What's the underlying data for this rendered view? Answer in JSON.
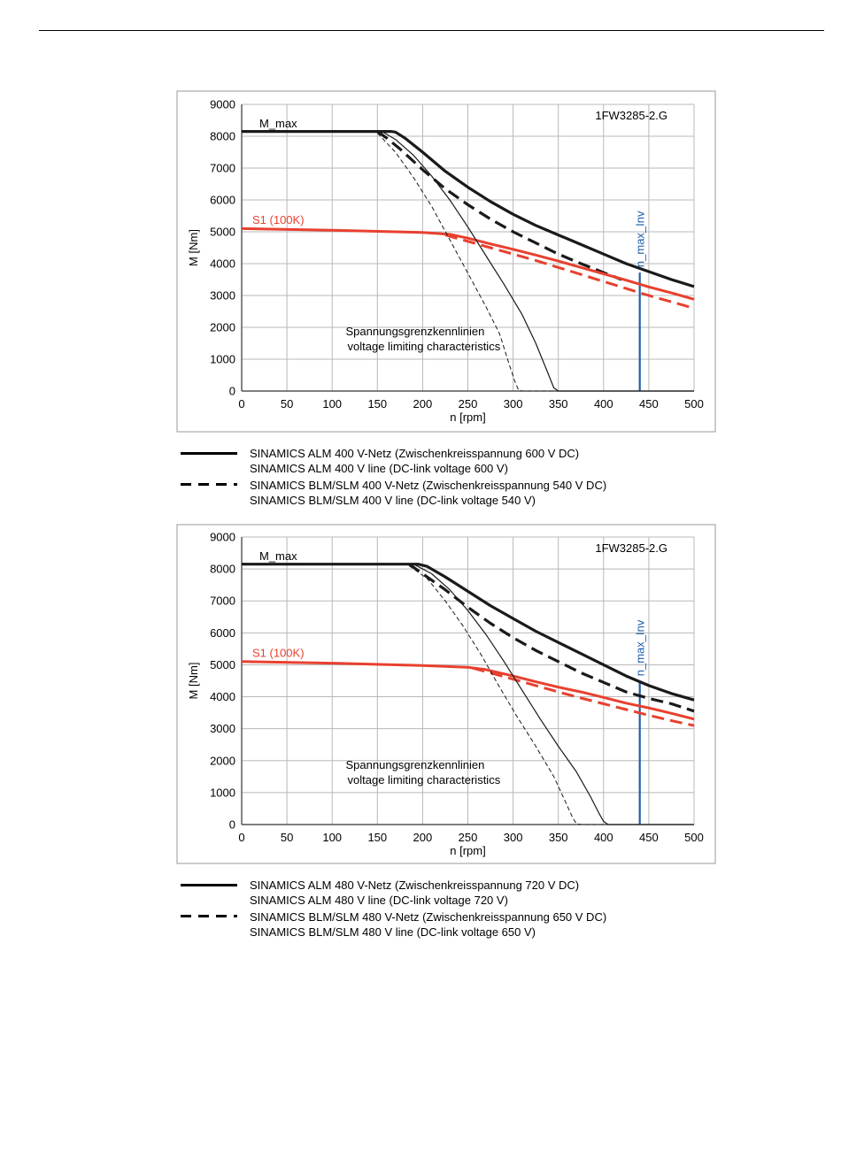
{
  "chart_data": [
    {
      "type": "line",
      "title": "1FW3285-2.G",
      "xlabel": "n [rpm]",
      "ylabel": "M [Nm]",
      "xlim": [
        0,
        500
      ],
      "ylim": [
        0,
        9000
      ],
      "xticks": [
        "0",
        "50",
        "100",
        "150",
        "200",
        "250",
        "300",
        "350",
        "400",
        "450",
        "500"
      ],
      "yticks": [
        "0",
        "1000",
        "2000",
        "3000",
        "4000",
        "5000",
        "6000",
        "7000",
        "8000",
        "9000"
      ],
      "grid": true,
      "annotations": {
        "mmax": "M_max",
        "s1": "S1 (100K)",
        "nmax": "n_max_Inv",
        "vlim1": "Spannungsgrenzkennlinien",
        "vlim2": "voltage limiting characteristics"
      },
      "n_max_inv": 440,
      "series": [
        {
          "key": "mmax_alm",
          "color": "#1a1a1a",
          "style": "solid",
          "width": 3.2,
          "points": [
            [
              0,
              8150
            ],
            [
              165,
              8150
            ],
            [
              170,
              8130
            ],
            [
              180,
              7950
            ],
            [
              200,
              7500
            ],
            [
              225,
              6900
            ],
            [
              250,
              6400
            ],
            [
              275,
              5950
            ],
            [
              300,
              5550
            ],
            [
              325,
              5200
            ],
            [
              350,
              4900
            ],
            [
              375,
              4600
            ],
            [
              400,
              4300
            ],
            [
              425,
              4000
            ],
            [
              450,
              3750
            ],
            [
              475,
              3500
            ],
            [
              500,
              3280
            ]
          ]
        },
        {
          "key": "mmax_blm",
          "color": "#1a1a1a",
          "style": "dashed",
          "width": 3.2,
          "points": [
            [
              150,
              8150
            ],
            [
              160,
              7950
            ],
            [
              175,
              7600
            ],
            [
              200,
              6950
            ],
            [
              225,
              6350
            ],
            [
              250,
              5850
            ],
            [
              275,
              5400
            ],
            [
              300,
              5000
            ],
            [
              325,
              4650
            ],
            [
              350,
              4300
            ],
            [
              375,
              4000
            ],
            [
              400,
              3720
            ],
            [
              420,
              3500
            ]
          ]
        },
        {
          "key": "s1_alm",
          "color": "#e8402f",
          "style": "solid",
          "width": 3,
          "points": [
            [
              0,
              5100
            ],
            [
              100,
              5050
            ],
            [
              200,
              4980
            ],
            [
              230,
              4920
            ],
            [
              250,
              4800
            ],
            [
              275,
              4620
            ],
            [
              300,
              4450
            ],
            [
              325,
              4270
            ],
            [
              350,
              4080
            ],
            [
              375,
              3880
            ],
            [
              400,
              3680
            ],
            [
              425,
              3480
            ],
            [
              450,
              3270
            ],
            [
              475,
              3080
            ],
            [
              500,
              2880
            ]
          ]
        },
        {
          "key": "s1_blm",
          "color": "#e8402f",
          "style": "dashed",
          "width": 3,
          "points": [
            [
              225,
              4900
            ],
            [
              250,
              4700
            ],
            [
              275,
              4500
            ],
            [
              300,
              4300
            ],
            [
              325,
              4100
            ],
            [
              350,
              3880
            ],
            [
              375,
              3660
            ],
            [
              400,
              3440
            ],
            [
              425,
              3220
            ],
            [
              450,
              3000
            ],
            [
              475,
              2800
            ],
            [
              500,
              2600
            ]
          ]
        },
        {
          "key": "vlim_alm",
          "color": "#1a1a1a",
          "style": "solid",
          "width": 1.2,
          "points": [
            [
              155,
              8150
            ],
            [
              170,
              7900
            ],
            [
              190,
              7400
            ],
            [
              210,
              6750
            ],
            [
              230,
              6000
            ],
            [
              250,
              5150
            ],
            [
              270,
              4250
            ],
            [
              290,
              3350
            ],
            [
              310,
              2400
            ],
            [
              325,
              1500
            ],
            [
              338,
              600
            ],
            [
              345,
              100
            ],
            [
              350,
              0
            ],
            [
              500,
              0
            ]
          ]
        },
        {
          "key": "vlim_blm",
          "color": "#1a1a1a",
          "style": "dashed",
          "width": 1,
          "points": [
            [
              150,
              8100
            ],
            [
              170,
              7500
            ],
            [
              190,
              6700
            ],
            [
              210,
              5800
            ],
            [
              230,
              4750
            ],
            [
              250,
              3700
            ],
            [
              270,
              2650
            ],
            [
              285,
              1800
            ],
            [
              295,
              900
            ],
            [
              302,
              300
            ],
            [
              306,
              30
            ],
            [
              310,
              0
            ],
            [
              440,
              0
            ]
          ]
        }
      ]
    },
    {
      "type": "line",
      "title": "1FW3285-2.G",
      "xlabel": "n [rpm]",
      "ylabel": "M [Nm]",
      "xlim": [
        0,
        500
      ],
      "ylim": [
        0,
        9000
      ],
      "xticks": [
        "0",
        "50",
        "100",
        "150",
        "200",
        "250",
        "300",
        "350",
        "400",
        "450",
        "500"
      ],
      "yticks": [
        "0",
        "1000",
        "2000",
        "3000",
        "4000",
        "5000",
        "6000",
        "7000",
        "8000",
        "9000"
      ],
      "grid": true,
      "annotations": {
        "mmax": "M_max",
        "s1": "S1 (100K)",
        "nmax": "n_max_Inv",
        "vlim1": "Spannungsgrenzkennlinien",
        "vlim2": "voltage limiting characteristics"
      },
      "n_max_inv": 440,
      "series": [
        {
          "key": "mmax_alm",
          "color": "#1a1a1a",
          "style": "solid",
          "width": 3.2,
          "points": [
            [
              0,
              8150
            ],
            [
              195,
              8150
            ],
            [
              205,
              8080
            ],
            [
              225,
              7750
            ],
            [
              250,
              7300
            ],
            [
              275,
              6850
            ],
            [
              300,
              6450
            ],
            [
              325,
              6050
            ],
            [
              350,
              5700
            ],
            [
              375,
              5350
            ],
            [
              400,
              5000
            ],
            [
              425,
              4650
            ],
            [
              450,
              4350
            ],
            [
              475,
              4100
            ],
            [
              500,
              3900
            ]
          ]
        },
        {
          "key": "mmax_blm",
          "color": "#1a1a1a",
          "style": "dashed",
          "width": 3.2,
          "points": [
            [
              185,
              8150
            ],
            [
              200,
              7850
            ],
            [
              225,
              7350
            ],
            [
              250,
              6800
            ],
            [
              275,
              6300
            ],
            [
              300,
              5850
            ],
            [
              325,
              5450
            ],
            [
              350,
              5100
            ],
            [
              375,
              4750
            ],
            [
              400,
              4450
            ],
            [
              425,
              4150
            ],
            [
              450,
              3950
            ],
            [
              475,
              3780
            ],
            [
              500,
              3550
            ]
          ]
        },
        {
          "key": "s1_alm",
          "color": "#e8402f",
          "style": "solid",
          "width": 3,
          "points": [
            [
              0,
              5100
            ],
            [
              100,
              5050
            ],
            [
              200,
              4980
            ],
            [
              250,
              4920
            ],
            [
              270,
              4850
            ],
            [
              300,
              4650
            ],
            [
              325,
              4470
            ],
            [
              350,
              4300
            ],
            [
              375,
              4150
            ],
            [
              400,
              3980
            ],
            [
              425,
              3800
            ],
            [
              450,
              3650
            ],
            [
              475,
              3480
            ],
            [
              500,
              3300
            ]
          ]
        },
        {
          "key": "s1_blm",
          "color": "#e8402f",
          "style": "dashed",
          "width": 3,
          "points": [
            [
              255,
              4900
            ],
            [
              275,
              4750
            ],
            [
              300,
              4550
            ],
            [
              325,
              4350
            ],
            [
              350,
              4150
            ],
            [
              375,
              3960
            ],
            [
              400,
              3780
            ],
            [
              425,
              3600
            ],
            [
              450,
              3420
            ],
            [
              475,
              3250
            ],
            [
              500,
              3100
            ]
          ]
        },
        {
          "key": "vlim_alm",
          "color": "#1a1a1a",
          "style": "solid",
          "width": 1.2,
          "points": [
            [
              190,
              8150
            ],
            [
              210,
              7850
            ],
            [
              230,
              7350
            ],
            [
              250,
              6700
            ],
            [
              270,
              5950
            ],
            [
              290,
              5100
            ],
            [
              310,
              4200
            ],
            [
              330,
              3300
            ],
            [
              350,
              2450
            ],
            [
              370,
              1650
            ],
            [
              385,
              900
            ],
            [
              395,
              350
            ],
            [
              400,
              100
            ],
            [
              405,
              0
            ],
            [
              500,
              0
            ]
          ]
        },
        {
          "key": "vlim_blm",
          "color": "#1a1a1a",
          "style": "dashed",
          "width": 1,
          "points": [
            [
              185,
              8100
            ],
            [
              205,
              7700
            ],
            [
              225,
              7000
            ],
            [
              245,
              6200
            ],
            [
              265,
              5300
            ],
            [
              285,
              4300
            ],
            [
              305,
              3350
            ],
            [
              325,
              2450
            ],
            [
              345,
              1500
            ],
            [
              358,
              700
            ],
            [
              366,
              200
            ],
            [
              370,
              30
            ],
            [
              375,
              0
            ],
            [
              440,
              0
            ]
          ]
        }
      ]
    }
  ],
  "legends": [
    {
      "rows": [
        {
          "style": "solid",
          "line1": "SINAMICS ALM  400 V-Netz (Zwischenkreisspannung 600 V DC)",
          "line2": "SINAMICS ALM  400 V line (DC-link voltage 600 V)"
        },
        {
          "style": "dashed",
          "line1": "SINAMICS BLM/SLM  400 V-Netz (Zwischenkreisspannung 540 V DC)",
          "line2": "SINAMICS BLM/SLM  400 V line (DC-link voltage 540 V)"
        }
      ]
    },
    {
      "rows": [
        {
          "style": "solid",
          "line1": "SINAMICS ALM  480 V-Netz (Zwischenkreisspannung 720 V DC)",
          "line2": "SINAMICS ALM  480 V line (DC-link voltage 720 V)"
        },
        {
          "style": "dashed",
          "line1": "SINAMICS BLM/SLM  480 V-Netz (Zwischenkreisspannung 650 V DC)",
          "line2": "SINAMICS BLM/SLM  480 V line (DC-link voltage 650 V)"
        }
      ]
    }
  ]
}
